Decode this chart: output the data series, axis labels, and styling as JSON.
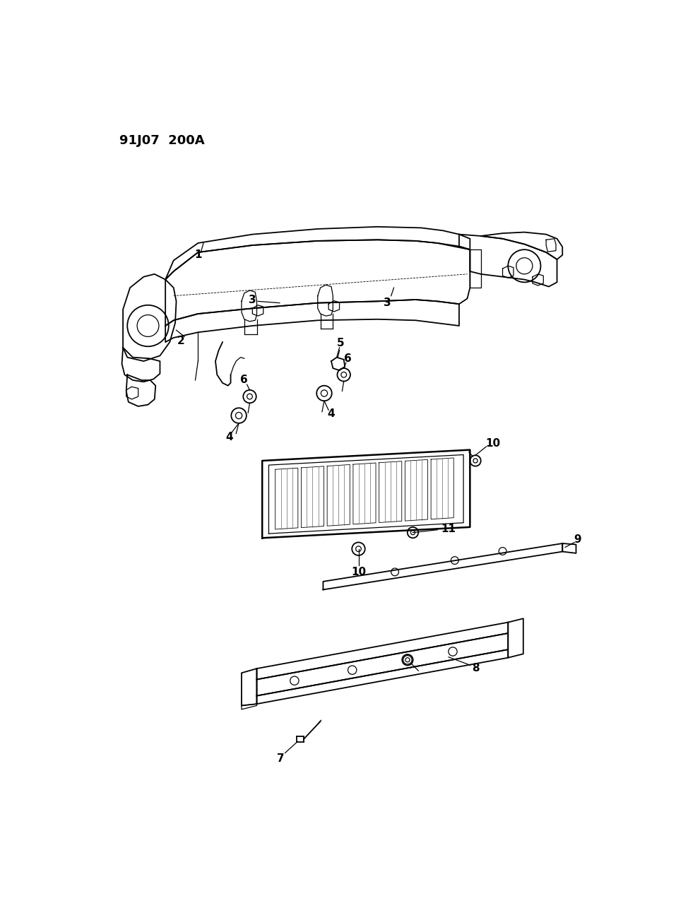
{
  "title": "91J07  200A",
  "background_color": "#ffffff",
  "line_color": "#000000",
  "title_fontsize": 13,
  "label_fontsize": 11
}
